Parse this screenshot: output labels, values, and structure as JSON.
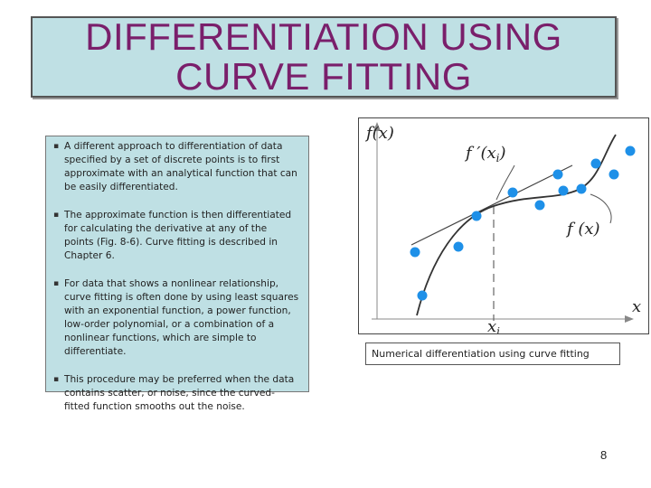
{
  "title": {
    "line1": "DIFFERENTIATION USING",
    "line2": "CURVE FITTING"
  },
  "bullets": [
    "A different approach to differentiation of data specified by a set of discrete points is to first approximate with an analytical function that can be easily differentiated.",
    "The approximate function is then differentiated for calculating the derivative at any of the points (Fig. 8-6). Curve fitting is described in Chapter 6.",
    "For data that shows a nonlinear relationship, curve fitting is often done by using least squares with an exponential function, a power function, low-order polynomial, or a combination of a nonlinear functions, which are simple to differentiate.",
    "This procedure may be preferred when the data contains scatter, or noise, since the curved-fitted function smooths out the noise."
  ],
  "bullet_marker": "▪",
  "figure": {
    "y_axis_label": "f(x)",
    "x_axis_label": "x",
    "xi_label": "x",
    "xi_subscript": "i",
    "tangent_label_prefix": "f ′(x",
    "tangent_label_sub": "i",
    "tangent_label_suffix": ")",
    "curve_label": "f (x)",
    "point_color": "#1e90e8"
  },
  "caption": "Numerical differentiation using curve fitting",
  "page_number": "8"
}
